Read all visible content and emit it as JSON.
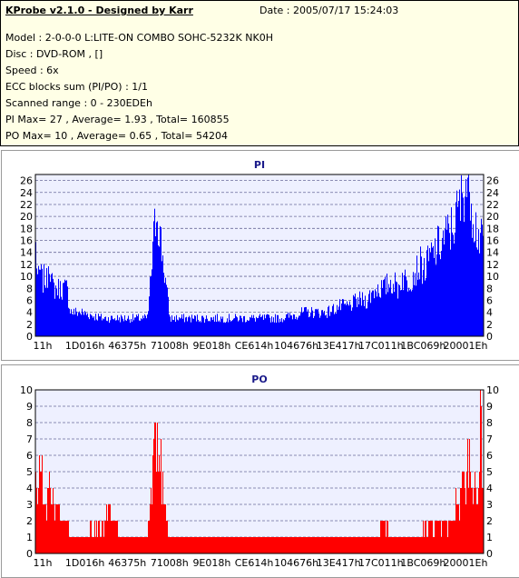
{
  "header": {
    "title": "KProbe v2.1.0 - Designed by Karr",
    "date": "Date : 2005/07/17 15:24:03",
    "lines": [
      "Model : 2-0-0-0 L:LITE-ON COMBO SOHC-5232K NK0H",
      "Disc : DVD-ROM ,  []",
      "Speed : 6x",
      "ECC blocks sum (PI/PO) : 1/1",
      "Scanned range : 0 - 230EDEh",
      "PI Max= 27 , Average= 1.93 , Total= 160855",
      "PO Max= 10 , Average= 0.65 , Total= 54204"
    ]
  },
  "chart_data": [
    {
      "type": "bar",
      "title": "PI",
      "color": "#0000ff",
      "ylim": [
        0,
        27
      ],
      "yticks": [
        0,
        2,
        4,
        6,
        8,
        10,
        12,
        14,
        16,
        18,
        20,
        22,
        24,
        26
      ],
      "xticks": [
        "11h",
        "1D016h",
        "46375h",
        "71008h",
        "9E018h",
        "CE614h",
        "104676h",
        "13E417h",
        "17C011h",
        "1BC069h",
        "20001Eh"
      ],
      "grid": true,
      "series": [
        {
          "profile": [
            [
              0.0,
              15
            ],
            [
              0.005,
              9
            ],
            [
              0.01,
              11
            ],
            [
              0.015,
              9
            ],
            [
              0.02,
              10
            ],
            [
              0.025,
              9
            ],
            [
              0.03,
              14
            ],
            [
              0.035,
              9
            ],
            [
              0.04,
              8
            ],
            [
              0.05,
              8
            ],
            [
              0.06,
              8
            ],
            [
              0.07,
              8
            ],
            [
              0.075,
              5
            ],
            [
              0.08,
              4
            ],
            [
              0.1,
              4
            ],
            [
              0.15,
              3
            ],
            [
              0.2,
              3
            ],
            [
              0.25,
              3
            ],
            [
              0.27,
              22
            ],
            [
              0.3,
              3
            ],
            [
              0.35,
              3
            ],
            [
              0.4,
              3
            ],
            [
              0.45,
              3
            ],
            [
              0.5,
              3
            ],
            [
              0.55,
              3
            ],
            [
              0.6,
              4
            ],
            [
              0.65,
              4
            ],
            [
              0.68,
              5
            ],
            [
              0.7,
              5
            ],
            [
              0.72,
              6
            ],
            [
              0.74,
              6
            ],
            [
              0.75,
              7
            ],
            [
              0.76,
              8
            ],
            [
              0.78,
              8
            ],
            [
              0.79,
              9
            ],
            [
              0.8,
              9
            ],
            [
              0.81,
              8
            ],
            [
              0.82,
              10
            ],
            [
              0.83,
              9
            ],
            [
              0.84,
              10
            ],
            [
              0.85,
              11
            ],
            [
              0.86,
              12
            ],
            [
              0.87,
              11
            ],
            [
              0.88,
              13
            ],
            [
              0.89,
              14
            ],
            [
              0.9,
              15
            ],
            [
              0.91,
              16
            ],
            [
              0.92,
              17
            ],
            [
              0.93,
              18
            ],
            [
              0.94,
              20
            ],
            [
              0.95,
              22
            ],
            [
              0.955,
              24
            ],
            [
              0.96,
              27
            ],
            [
              0.965,
              24
            ],
            [
              0.97,
              27
            ],
            [
              0.975,
              22
            ],
            [
              0.98,
              20
            ],
            [
              0.985,
              18
            ],
            [
              0.99,
              17
            ],
            [
              0.995,
              16
            ],
            [
              1.0,
              15
            ]
          ]
        }
      ]
    },
    {
      "type": "bar",
      "title": "PO",
      "color": "#ff0000",
      "ylim": [
        0,
        10
      ],
      "yticks": [
        0,
        1,
        2,
        3,
        4,
        5,
        6,
        7,
        8,
        9,
        10
      ],
      "xticks": [
        "11h",
        "1D016h",
        "46375h",
        "71008h",
        "9E018h",
        "CE614h",
        "104676h",
        "13E417h",
        "17C011h",
        "1BC069h",
        "20001Eh"
      ],
      "grid": true,
      "series": [
        {
          "profile": [
            [
              0.0,
              5
            ],
            [
              0.005,
              4
            ],
            [
              0.01,
              6
            ],
            [
              0.015,
              5
            ],
            [
              0.02,
              4
            ],
            [
              0.025,
              3
            ],
            [
              0.03,
              5
            ],
            [
              0.035,
              4
            ],
            [
              0.04,
              3
            ],
            [
              0.05,
              3
            ],
            [
              0.06,
              2
            ],
            [
              0.07,
              2
            ],
            [
              0.08,
              1
            ],
            [
              0.1,
              1
            ],
            [
              0.15,
              2
            ],
            [
              0.17,
              3
            ],
            [
              0.18,
              2
            ],
            [
              0.2,
              1
            ],
            [
              0.25,
              1
            ],
            [
              0.27,
              8
            ],
            [
              0.3,
              1
            ],
            [
              0.35,
              1
            ],
            [
              0.4,
              1
            ],
            [
              0.45,
              1
            ],
            [
              0.5,
              1
            ],
            [
              0.55,
              1
            ],
            [
              0.6,
              1
            ],
            [
              0.65,
              1
            ],
            [
              0.7,
              1
            ],
            [
              0.75,
              1
            ],
            [
              0.78,
              2
            ],
            [
              0.8,
              1
            ],
            [
              0.85,
              1
            ],
            [
              0.88,
              2
            ],
            [
              0.9,
              2
            ],
            [
              0.92,
              2
            ],
            [
              0.94,
              3
            ],
            [
              0.95,
              4
            ],
            [
              0.96,
              5
            ],
            [
              0.97,
              7
            ],
            [
              0.975,
              4
            ],
            [
              0.98,
              6
            ],
            [
              0.985,
              3
            ],
            [
              0.99,
              5
            ],
            [
              0.995,
              10
            ],
            [
              1.0,
              3
            ]
          ]
        }
      ]
    }
  ]
}
